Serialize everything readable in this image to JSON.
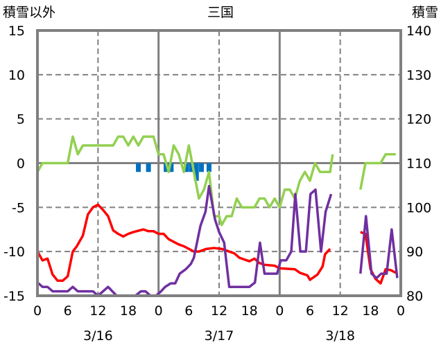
{
  "chart_data": {
    "type": "line",
    "title": "三国",
    "ylabel_left": "積雪以外",
    "ylabel_right": "積雪",
    "ylim_left": [
      -15,
      15
    ],
    "yticks_left": [
      "15",
      "10",
      "5",
      "0",
      "-5",
      "-10",
      "-15"
    ],
    "ylim_right": [
      80,
      140
    ],
    "yticks_right": [
      "140",
      "130",
      "120",
      "110",
      "100",
      "90",
      "80"
    ],
    "xlim_hours": [
      0,
      72
    ],
    "xticks": [
      "0",
      "6",
      "12",
      "18",
      "0",
      "6",
      "12",
      "18",
      "0",
      "6",
      "12",
      "18",
      "0"
    ],
    "date_labels": [
      {
        "label": "3/16",
        "hour": 12
      },
      {
        "label": "3/17",
        "hour": 36
      },
      {
        "label": "3/18",
        "hour": 60
      }
    ],
    "grid": true,
    "colors": {
      "green": "#92d050",
      "red": "#ff0000",
      "purple": "#7030a0",
      "blue": "#0070c0",
      "frame": "#808080"
    },
    "series": [
      {
        "name": "green",
        "color": "#92d050",
        "segments": [
          [
            [
              0,
              -1
            ],
            [
              1,
              0
            ],
            [
              6,
              0
            ],
            [
              7,
              3
            ],
            [
              8,
              1
            ],
            [
              9,
              2
            ],
            [
              15,
              2
            ],
            [
              16,
              3
            ],
            [
              17,
              3
            ],
            [
              18,
              2
            ],
            [
              19,
              3
            ],
            [
              20,
              2
            ],
            [
              21,
              3
            ],
            [
              23,
              3
            ],
            [
              24,
              1
            ],
            [
              25,
              1
            ],
            [
              26,
              -1
            ],
            [
              27,
              2
            ],
            [
              28,
              1
            ],
            [
              29,
              -1
            ],
            [
              30,
              2
            ],
            [
              31,
              -1
            ],
            [
              32,
              -4
            ],
            [
              33,
              -3
            ],
            [
              34,
              -1
            ],
            [
              35,
              -6
            ],
            [
              36,
              -6
            ],
            [
              36.5,
              -7
            ],
            [
              37.5,
              -6
            ],
            [
              38.5,
              -6
            ],
            [
              39.5,
              -4
            ],
            [
              40.5,
              -5
            ],
            [
              43,
              -5
            ],
            [
              44,
              -4
            ],
            [
              45,
              -4
            ],
            [
              46,
              -5
            ],
            [
              47,
              -4
            ],
            [
              48,
              -5
            ],
            [
              49,
              -3
            ],
            [
              50,
              -3
            ],
            [
              51,
              -4
            ],
            [
              52,
              -2
            ],
            [
              53,
              -1
            ],
            [
              54,
              -2
            ],
            [
              55,
              0
            ],
            [
              56,
              -1
            ],
            [
              58,
              -1
            ],
            [
              58.5,
              1
            ]
          ],
          [
            [
              64,
              -3
            ],
            [
              65,
              0
            ],
            [
              68,
              0
            ],
            [
              69,
              1
            ],
            [
              71,
              1
            ]
          ]
        ]
      },
      {
        "name": "red",
        "color": "#ff0000",
        "segments": [
          [
            [
              0,
              -10
            ],
            [
              1,
              -11
            ],
            [
              2,
              -10.8
            ],
            [
              3,
              -12.6
            ],
            [
              4,
              -13.3
            ],
            [
              5,
              -13.3
            ],
            [
              6,
              -12.8
            ],
            [
              7,
              -10
            ],
            [
              7.8,
              -9.4
            ],
            [
              9,
              -8.2
            ],
            [
              10,
              -5.8
            ],
            [
              11,
              -5
            ],
            [
              12,
              -4.7
            ],
            [
              13,
              -5.3
            ],
            [
              14,
              -6
            ],
            [
              15,
              -7.6
            ],
            [
              16,
              -8
            ],
            [
              17,
              -8.3
            ],
            [
              18,
              -8
            ],
            [
              19,
              -7.8
            ],
            [
              21,
              -7.5
            ],
            [
              22,
              -7.7
            ],
            [
              23,
              -7.7
            ],
            [
              24,
              -8
            ],
            [
              25,
              -8
            ],
            [
              26,
              -8.6
            ],
            [
              28,
              -9.2
            ],
            [
              29,
              -9.4
            ],
            [
              31,
              -10
            ],
            [
              32,
              -10
            ],
            [
              33.5,
              -9.7
            ],
            [
              35,
              -9.6
            ],
            [
              36.5,
              -9.7
            ],
            [
              38,
              -10
            ],
            [
              39,
              -10.2
            ],
            [
              40,
              -10.7
            ],
            [
              42,
              -11.1
            ],
            [
              43,
              -10.8
            ],
            [
              44,
              -11.3
            ],
            [
              45,
              -11.5
            ],
            [
              47,
              -11.6
            ],
            [
              48,
              -11.9
            ],
            [
              51,
              -12
            ],
            [
              52,
              -12.4
            ],
            [
              53.5,
              -12.7
            ],
            [
              54,
              -13.2
            ],
            [
              55.5,
              -12.6
            ],
            [
              56.5,
              -11.7
            ],
            [
              57,
              -10.3
            ],
            [
              58,
              -9.7
            ]
          ],
          [
            [
              64,
              -7.8
            ],
            [
              65,
              -8
            ],
            [
              66,
              -12
            ],
            [
              67,
              -13.1
            ],
            [
              68,
              -13.6
            ],
            [
              69,
              -12
            ],
            [
              70,
              -12.1
            ],
            [
              71,
              -12.4
            ]
          ]
        ]
      },
      {
        "name": "purple",
        "color": "#7030a0",
        "segments": [
          [
            [
              0,
              -13.5
            ],
            [
              1,
              -14
            ],
            [
              2,
              -14
            ],
            [
              3,
              -14.5
            ],
            [
              6,
              -14.5
            ],
            [
              7,
              -14
            ],
            [
              8,
              -14.5
            ],
            [
              11,
              -14.5
            ],
            [
              12,
              -15
            ],
            [
              14,
              -14
            ],
            [
              15.7,
              -15
            ],
            [
              19.4,
              -15
            ],
            [
              20.5,
              -14.5
            ],
            [
              21.4,
              -14.5
            ],
            [
              22.4,
              -15
            ],
            [
              23.5,
              -15
            ],
            [
              24.5,
              -14.5
            ],
            [
              25.3,
              -14
            ],
            [
              26.4,
              -13.6
            ],
            [
              27.3,
              -13.6
            ],
            [
              28.2,
              -12.5
            ],
            [
              29.4,
              -12
            ],
            [
              30.4,
              -11.4
            ],
            [
              31,
              -10.7
            ],
            [
              32.3,
              -7.1
            ],
            [
              33.3,
              -5.5
            ],
            [
              34,
              -2.6
            ],
            [
              35.2,
              -6.4
            ],
            [
              36,
              -7.8
            ],
            [
              37,
              -9
            ],
            [
              38,
              -14
            ],
            [
              42,
              -14
            ],
            [
              43.1,
              -13.5
            ],
            [
              44.1,
              -9
            ],
            [
              45,
              -12.5
            ],
            [
              47.5,
              -12.5
            ],
            [
              48.2,
              -11
            ],
            [
              49.3,
              -11
            ],
            [
              50.3,
              -10
            ],
            [
              51.1,
              -3.5
            ],
            [
              52.1,
              -10
            ],
            [
              53.2,
              -10
            ],
            [
              54.1,
              -3.5
            ],
            [
              55.1,
              -3
            ],
            [
              56.2,
              -10
            ],
            [
              57.1,
              -5.5
            ],
            [
              58.2,
              -3.5
            ]
          ],
          [
            [
              64,
              -12.5
            ],
            [
              65.1,
              -6
            ],
            [
              66.2,
              -12.5
            ],
            [
              67.2,
              -13
            ],
            [
              68.1,
              -12.5
            ],
            [
              69.2,
              -12.5
            ],
            [
              70.2,
              -7.5
            ],
            [
              71.3,
              -13
            ]
          ]
        ]
      }
    ],
    "bars": {
      "name": "blue",
      "color": "#0070c0",
      "hours": [
        20,
        22,
        25.5,
        26.5,
        29.5,
        30.5,
        31.5,
        32.5,
        34
      ],
      "values": [
        -1,
        -1,
        -1,
        -1,
        -1,
        -1,
        -2,
        -1,
        -1
      ]
    }
  }
}
